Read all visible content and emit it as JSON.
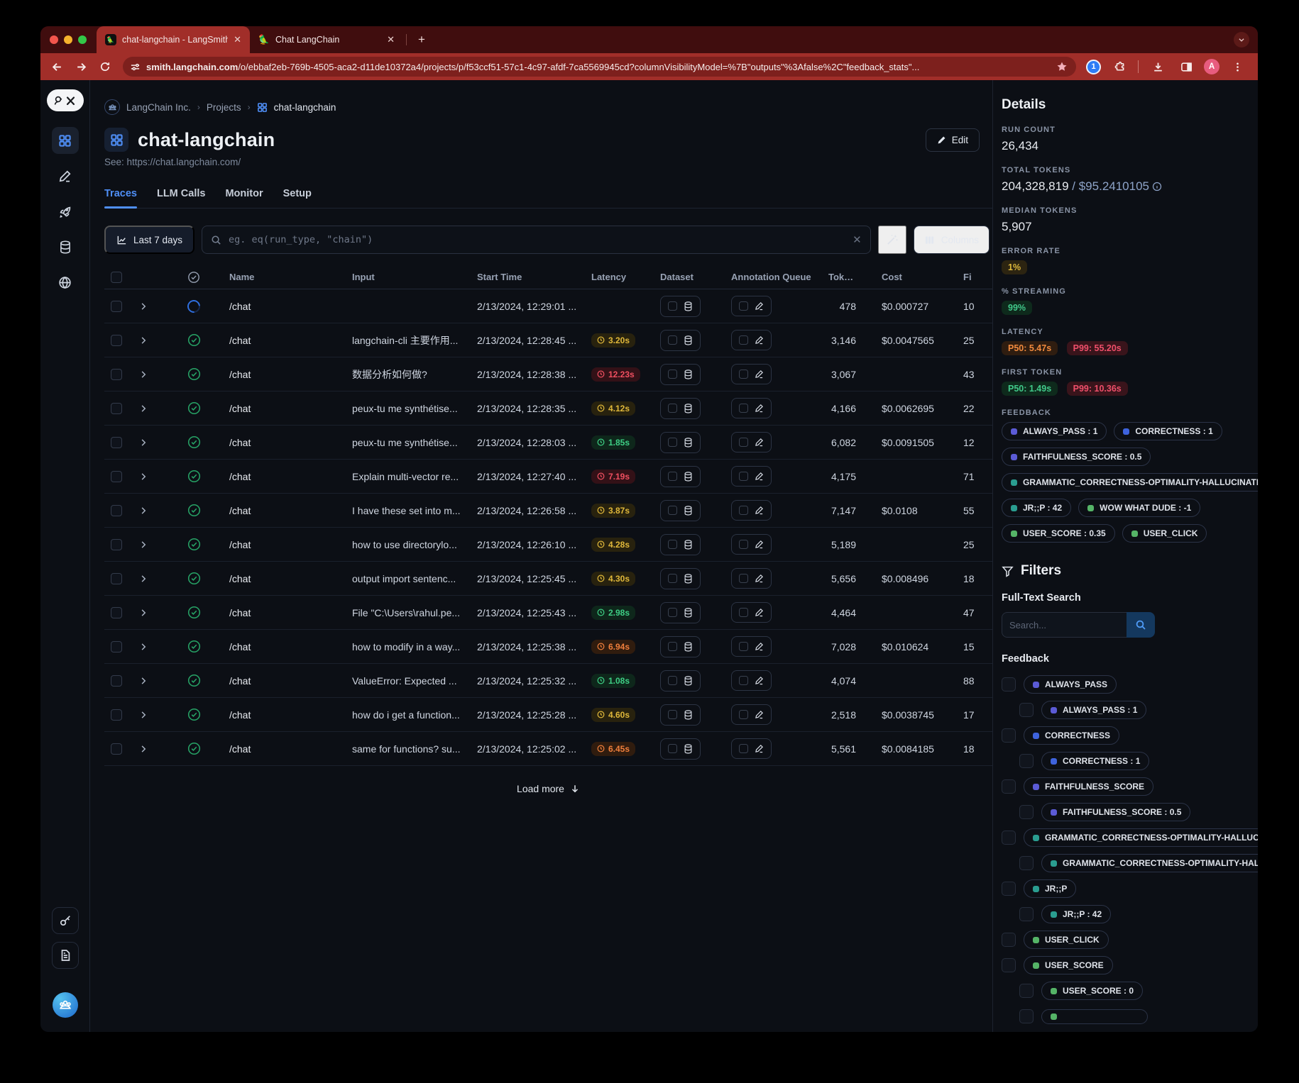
{
  "theme": {
    "accent": "#4f8ff7",
    "chrome_red": "#a12e29",
    "purple": "#5b5bd6",
    "blue": "#3e63dd",
    "teal": "#2a9d90",
    "green": "#55b467"
  },
  "browser": {
    "tabs": [
      {
        "title": "chat-langchain - LangSmith",
        "active": true
      },
      {
        "title": "Chat LangChain",
        "active": false
      }
    ],
    "url_domain": "smith.langchain.com",
    "url_path": "/o/ebbaf2eb-769b-4505-aca2-d11de10372a4/projects/p/f53ccf51-57c1-4c97-afdf-7ca5569945cd?columnVisibilityModel=%7B\"outputs\"%3Afalse%2C\"feedback_stats\"...",
    "avatar_letter": "A",
    "onepassword_label": "1"
  },
  "breadcrumb": {
    "org": "LangChain Inc.",
    "section": "Projects",
    "current": "chat-langchain"
  },
  "header": {
    "title": "chat-langchain",
    "subtitle": "See: https://chat.langchain.com/",
    "edit_label": "Edit"
  },
  "main_tabs": [
    {
      "label": "Traces",
      "active": true
    },
    {
      "label": "LLM Calls",
      "active": false
    },
    {
      "label": "Monitor",
      "active": false
    },
    {
      "label": "Setup",
      "active": false
    }
  ],
  "toolbar": {
    "time_range": "Last 7 days",
    "search_placeholder": "eg. eq(run_type, \"chain\")",
    "columns_label": "Columns"
  },
  "table": {
    "columns": [
      "Name",
      "Input",
      "Start Time",
      "Latency",
      "Dataset",
      "Annotation Queue",
      "Tokens",
      "Cost",
      "Fi"
    ],
    "rows": [
      {
        "status": "pending",
        "name": "/chat",
        "input": "",
        "start": "2/13/2024, 12:29:01 ...",
        "latency": "",
        "latency_tone": "",
        "tokens": "478",
        "cost": "$0.000727",
        "first": "10"
      },
      {
        "status": "success",
        "name": "/chat",
        "input": "langchain-cli 主要作用...",
        "start": "2/13/2024, 12:28:45 ...",
        "latency": "3.20s",
        "latency_tone": "yellow",
        "tokens": "3,146",
        "cost": "$0.0047565",
        "first": "25"
      },
      {
        "status": "success",
        "name": "/chat",
        "input": "数据分析如何做?",
        "start": "2/13/2024, 12:28:38 ...",
        "latency": "12.23s",
        "latency_tone": "red",
        "tokens": "3,067",
        "cost": "",
        "first": "43"
      },
      {
        "status": "success",
        "name": "/chat",
        "input": "peux-tu me synthétise...",
        "start": "2/13/2024, 12:28:35 ...",
        "latency": "4.12s",
        "latency_tone": "yellow",
        "tokens": "4,166",
        "cost": "$0.0062695",
        "first": "22"
      },
      {
        "status": "success",
        "name": "/chat",
        "input": "peux-tu me synthétise...",
        "start": "2/13/2024, 12:28:03 ...",
        "latency": "1.85s",
        "latency_tone": "green",
        "tokens": "6,082",
        "cost": "$0.0091505",
        "first": "12"
      },
      {
        "status": "success",
        "name": "/chat",
        "input": "Explain multi-vector re...",
        "start": "2/13/2024, 12:27:40 ...",
        "latency": "7.19s",
        "latency_tone": "red",
        "tokens": "4,175",
        "cost": "",
        "first": "71"
      },
      {
        "status": "success",
        "name": "/chat",
        "input": "I have these set into m...",
        "start": "2/13/2024, 12:26:58 ...",
        "latency": "3.87s",
        "latency_tone": "yellow",
        "tokens": "7,147",
        "cost": "$0.0108",
        "first": "55"
      },
      {
        "status": "success",
        "name": "/chat",
        "input": "how to use directorylo...",
        "start": "2/13/2024, 12:26:10 ...",
        "latency": "4.28s",
        "latency_tone": "yellow",
        "tokens": "5,189",
        "cost": "",
        "first": "25"
      },
      {
        "status": "success",
        "name": "/chat",
        "input": "output import sentenc...",
        "start": "2/13/2024, 12:25:45 ...",
        "latency": "4.30s",
        "latency_tone": "yellow",
        "tokens": "5,656",
        "cost": "$0.008496",
        "first": "18"
      },
      {
        "status": "success",
        "name": "/chat",
        "input": "File \"C:\\Users\\rahul.pe...",
        "start": "2/13/2024, 12:25:43 ...",
        "latency": "2.98s",
        "latency_tone": "green",
        "tokens": "4,464",
        "cost": "",
        "first": "47"
      },
      {
        "status": "success",
        "name": "/chat",
        "input": "how to modify in a way...",
        "start": "2/13/2024, 12:25:38 ...",
        "latency": "6.94s",
        "latency_tone": "orange",
        "tokens": "7,028",
        "cost": "$0.010624",
        "first": "15"
      },
      {
        "status": "success",
        "name": "/chat",
        "input": "ValueError: Expected ...",
        "start": "2/13/2024, 12:25:32 ...",
        "latency": "1.08s",
        "latency_tone": "green",
        "tokens": "4,074",
        "cost": "",
        "first": "88"
      },
      {
        "status": "success",
        "name": "/chat",
        "input": "how do i get a function...",
        "start": "2/13/2024, 12:25:28 ...",
        "latency": "4.60s",
        "latency_tone": "yellow",
        "tokens": "2,518",
        "cost": "$0.0038745",
        "first": "17"
      },
      {
        "status": "success",
        "name": "/chat",
        "input": "same for functions? su...",
        "start": "2/13/2024, 12:25:02 ...",
        "latency": "6.45s",
        "latency_tone": "orange",
        "tokens": "5,561",
        "cost": "$0.0084185",
        "first": "18"
      }
    ],
    "load_more": "Load more"
  },
  "details": {
    "title": "Details",
    "run_count_label": "RUN COUNT",
    "run_count": "26,434",
    "total_tokens_label": "TOTAL TOKENS",
    "total_tokens": "204,328,819",
    "total_cost": "/ $95.2410105",
    "median_tokens_label": "MEDIAN TOKENS",
    "median_tokens": "5,907",
    "error_rate_label": "ERROR RATE",
    "error_rate": "1%",
    "streaming_label": "% STREAMING",
    "streaming": "99%",
    "latency_label": "LATENCY",
    "latency_badges": [
      {
        "label": "P50: 5.47s",
        "tone": "orange"
      },
      {
        "label": "P99: 55.20s",
        "tone": "red"
      }
    ],
    "first_token_label": "FIRST TOKEN",
    "first_token_badges": [
      {
        "label": "P50: 1.49s",
        "tone": "green"
      },
      {
        "label": "P99: 10.36s",
        "tone": "red"
      }
    ],
    "feedback_label": "FEEDBACK",
    "feedback": [
      {
        "name": "ALWAYS_PASS",
        "value": "1",
        "color": "#5b5bd6"
      },
      {
        "name": "CORRECTNESS",
        "value": "1",
        "color": "#3e63dd"
      },
      {
        "name": "FAITHFULNESS_SCORE",
        "value": "0.5",
        "color": "#5b5bd6"
      },
      {
        "name": "GRAMMATIC_CORRECTNESS-OPTIMALITY-HALLUCINATIO",
        "value": "",
        "color": "#2a9d90"
      },
      {
        "name": "JR;;P",
        "value": "42",
        "color": "#2a9d90"
      },
      {
        "name": "WOW WHAT DUDE",
        "value": "-1",
        "color": "#55b467"
      },
      {
        "name": "USER_SCORE",
        "value": "0.35",
        "color": "#55b467"
      },
      {
        "name": "USER_CLICK",
        "value": "",
        "color": "#55b467"
      }
    ]
  },
  "filters": {
    "title": "Filters",
    "full_text_label": "Full-Text Search",
    "search_placeholder": "Search...",
    "feedback_label": "Feedback",
    "items": [
      {
        "name": "ALWAYS_PASS",
        "value": "",
        "color": "#5b5bd6",
        "indent": 0
      },
      {
        "name": "ALWAYS_PASS",
        "value": "1",
        "color": "#5b5bd6",
        "indent": 1
      },
      {
        "name": "CORRECTNESS",
        "value": "",
        "color": "#3e63dd",
        "indent": 0
      },
      {
        "name": "CORRECTNESS",
        "value": "1",
        "color": "#3e63dd",
        "indent": 1
      },
      {
        "name": "FAITHFULNESS_SCORE",
        "value": "",
        "color": "#5b5bd6",
        "indent": 0
      },
      {
        "name": "FAITHFULNESS_SCORE",
        "value": "0.5",
        "color": "#5b5bd6",
        "indent": 1
      },
      {
        "name": "GRAMMATIC_CORRECTNESS-OPTIMALITY-HALLUCINATIO",
        "value": "",
        "color": "#2a9d90",
        "indent": 0
      },
      {
        "name": "GRAMMATIC_CORRECTNESS-OPTIMALITY-HALLUCINATIO",
        "value": "",
        "color": "#2a9d90",
        "indent": 1
      },
      {
        "name": "JR;;P",
        "value": "",
        "color": "#2a9d90",
        "indent": 0
      },
      {
        "name": "JR;;P",
        "value": "42",
        "color": "#2a9d90",
        "indent": 1
      },
      {
        "name": "USER_CLICK",
        "value": "",
        "color": "#55b467",
        "indent": 0
      },
      {
        "name": "USER_SCORE",
        "value": "",
        "color": "#55b467",
        "indent": 0
      },
      {
        "name": "USER_SCORE",
        "value": "0",
        "color": "#55b467",
        "indent": 1
      },
      {
        "name": "",
        "value": "",
        "color": "#55b467",
        "indent": 1,
        "cut": true
      }
    ]
  }
}
